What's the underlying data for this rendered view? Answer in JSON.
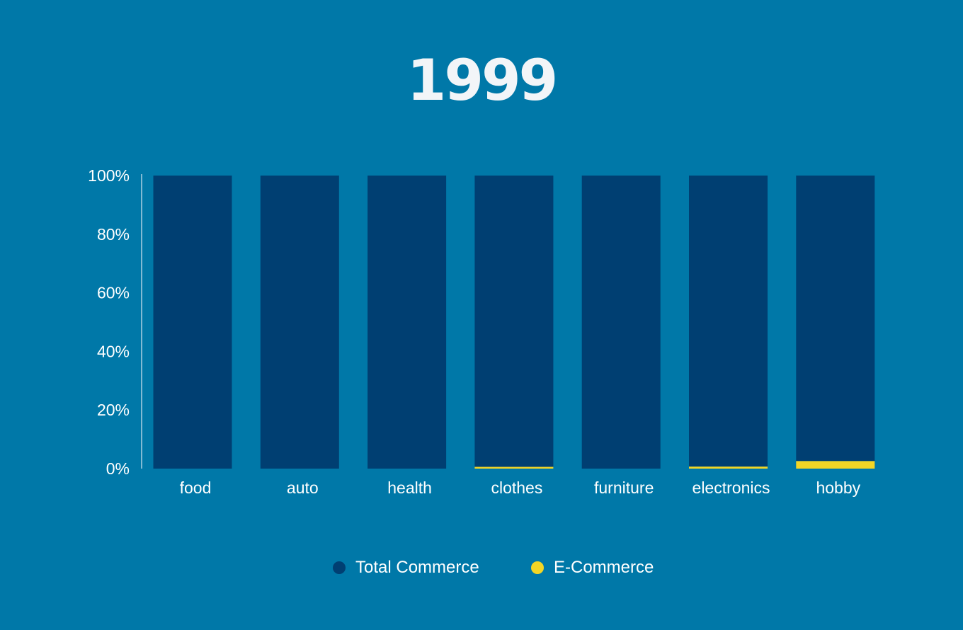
{
  "chart_data": {
    "type": "bar",
    "stacked": true,
    "title": "1999",
    "categories": [
      "food",
      "auto",
      "health",
      "clothes",
      "furniture",
      "electronics",
      "hobby"
    ],
    "series": [
      {
        "name": "Total Commerce",
        "color": "#003F72",
        "values": [
          100,
          100,
          100,
          99.4,
          100,
          99.3,
          97.4
        ]
      },
      {
        "name": "E-Commerce",
        "color": "#F3D625",
        "values": [
          0,
          0,
          0,
          0.6,
          0,
          0.7,
          2.6
        ]
      }
    ],
    "ylim": [
      0,
      100
    ],
    "yticks": [
      0,
      20,
      40,
      60,
      80,
      100
    ],
    "ytick_labels": [
      "0%",
      "20%",
      "40%",
      "60%",
      "80%",
      "100%"
    ],
    "xlabel": "",
    "ylabel": "",
    "grid": false,
    "legend_position": "bottom",
    "background": "#0078A8"
  }
}
